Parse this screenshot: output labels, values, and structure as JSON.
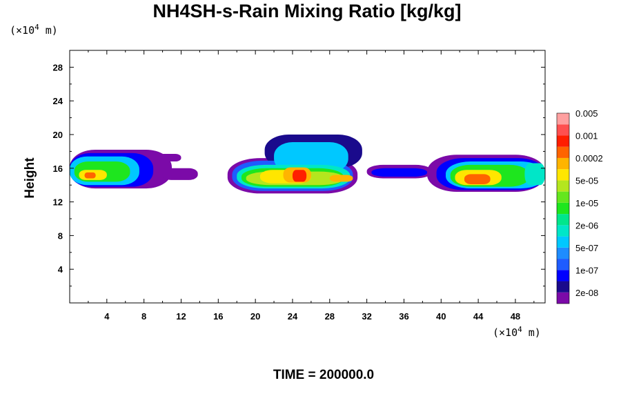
{
  "chart_data": {
    "type": "heatmap",
    "title": "NH4SH-s-Rain Mixing Ratio [kg/kg]",
    "ylabel": "Height",
    "x_unit": {
      "prefix": "(×10",
      "exp": "4",
      "suffix": " m)"
    },
    "y_unit": {
      "prefix": "(×10",
      "exp": "4",
      "suffix": " m)"
    },
    "xlim": [
      0,
      51.2
    ],
    "ylim": [
      0,
      30
    ],
    "x_ticks": [
      4,
      8,
      12,
      16,
      20,
      24,
      28,
      32,
      36,
      40,
      44,
      48
    ],
    "y_ticks": [
      4,
      8,
      12,
      16,
      20,
      24,
      28
    ],
    "time_label": "TIME = 200000.0",
    "colorbar": {
      "colors": [
        "#7b0aa8",
        "#1a0a8c",
        "#0000ff",
        "#1e5cff",
        "#1e8cff",
        "#00c8ff",
        "#00e6c8",
        "#00e68c",
        "#1ee61e",
        "#64e61e",
        "#b4e61e",
        "#ffe600",
        "#ffb400",
        "#ff6400",
        "#ff1e00",
        "#ff5050",
        "#ffa0a0"
      ],
      "labels": [
        "2e-08",
        "1e-07",
        "5e-07",
        "2e-06",
        "1e-05",
        "5e-05",
        "0.0002",
        "0.001",
        "0.005"
      ]
    },
    "cloud_blobs": [
      {
        "x": 0.0,
        "y": 13.6,
        "w": 11.0,
        "h": 4.6,
        "lvl": 0
      },
      {
        "x": 0.0,
        "y": 13.8,
        "w": 9.0,
        "h": 4.0,
        "lvl": 2
      },
      {
        "x": 0.0,
        "y": 14.0,
        "w": 7.5,
        "h": 3.4,
        "lvl": 5
      },
      {
        "x": 0.5,
        "y": 14.4,
        "w": 6.0,
        "h": 2.4,
        "lvl": 8
      },
      {
        "x": 1.0,
        "y": 14.6,
        "w": 3.0,
        "h": 1.2,
        "lvl": 11
      },
      {
        "x": 1.6,
        "y": 14.8,
        "w": 1.2,
        "h": 0.7,
        "lvl": 13
      },
      {
        "x": 10.0,
        "y": 14.6,
        "w": 3.8,
        "h": 1.4,
        "lvl": 0
      },
      {
        "x": 9.5,
        "y": 16.8,
        "w": 2.5,
        "h": 0.9,
        "lvl": 0
      },
      {
        "x": 17.0,
        "y": 13.0,
        "w": 14.0,
        "h": 4.2,
        "lvl": 0
      },
      {
        "x": 21.0,
        "y": 16.0,
        "w": 10.5,
        "h": 4.0,
        "lvl": 1
      },
      {
        "x": 17.5,
        "y": 13.3,
        "w": 13.0,
        "h": 3.6,
        "lvl": 3
      },
      {
        "x": 22.0,
        "y": 15.5,
        "w": 8.0,
        "h": 3.6,
        "lvl": 5
      },
      {
        "x": 18.0,
        "y": 13.6,
        "w": 12.2,
        "h": 2.8,
        "lvl": 6
      },
      {
        "x": 18.5,
        "y": 13.8,
        "w": 11.0,
        "h": 2.2,
        "lvl": 8
      },
      {
        "x": 19.0,
        "y": 14.0,
        "w": 10.5,
        "h": 1.6,
        "lvl": 10
      },
      {
        "x": 20.5,
        "y": 14.2,
        "w": 5.5,
        "h": 1.6,
        "lvl": 11
      },
      {
        "x": 23.0,
        "y": 14.3,
        "w": 3.0,
        "h": 1.8,
        "lvl": 12
      },
      {
        "x": 24.0,
        "y": 14.4,
        "w": 1.5,
        "h": 1.4,
        "lvl": 14
      },
      {
        "x": 28.0,
        "y": 14.4,
        "w": 2.5,
        "h": 0.8,
        "lvl": 12
      },
      {
        "x": 32.0,
        "y": 14.8,
        "w": 7.0,
        "h": 1.6,
        "lvl": 0
      },
      {
        "x": 32.5,
        "y": 15.0,
        "w": 6.0,
        "h": 1.0,
        "lvl": 2
      },
      {
        "x": 38.5,
        "y": 13.2,
        "w": 12.7,
        "h": 4.4,
        "lvl": 0
      },
      {
        "x": 39.5,
        "y": 13.4,
        "w": 11.7,
        "h": 3.8,
        "lvl": 2
      },
      {
        "x": 40.5,
        "y": 13.6,
        "w": 10.7,
        "h": 3.2,
        "lvl": 5
      },
      {
        "x": 41.0,
        "y": 13.8,
        "w": 8.5,
        "h": 2.6,
        "lvl": 8
      },
      {
        "x": 41.5,
        "y": 14.0,
        "w": 5.0,
        "h": 1.8,
        "lvl": 11
      },
      {
        "x": 42.5,
        "y": 14.1,
        "w": 2.8,
        "h": 1.2,
        "lvl": 13
      },
      {
        "x": 49.0,
        "y": 14.0,
        "w": 2.2,
        "h": 2.6,
        "lvl": 6
      }
    ]
  }
}
